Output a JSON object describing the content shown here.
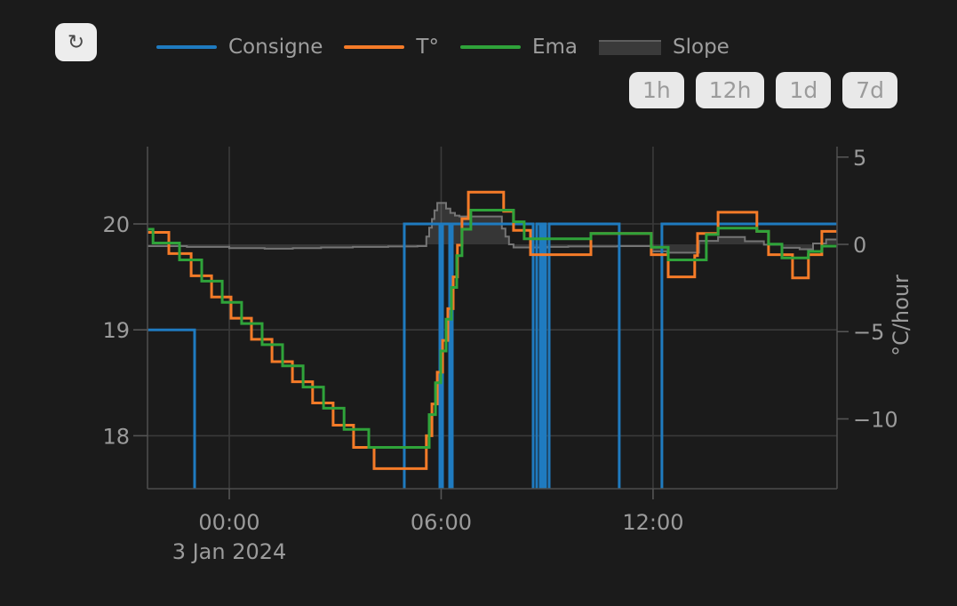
{
  "toolbar": {
    "refresh_icon": "↻"
  },
  "legend": {
    "items": [
      {
        "label": "Consigne",
        "color": "#1f7bc0",
        "type": "line"
      },
      {
        "label": "T°",
        "color": "#f57b28",
        "type": "line"
      },
      {
        "label": "Ema",
        "color": "#2fa33a",
        "type": "line"
      },
      {
        "label": "Slope",
        "color": "#3a3a3a",
        "type": "area"
      }
    ]
  },
  "range_buttons": [
    "1h",
    "12h",
    "1d",
    "7d"
  ],
  "theme": {
    "background": "#1b1b1b",
    "grid": "#3a3a3a",
    "axis_border": "#4c4c4c",
    "tick": "#555555",
    "text": "#9b9b9b",
    "button_bg": "#e9e9e9",
    "button_text": "#9b9b9b",
    "slope_line": "#757575",
    "slope_fill": "rgba(200,200,200,0.16)"
  },
  "chart_data": {
    "type": "line",
    "title": "",
    "x_axis": {
      "unit": "hours relative to 3 Jan 2024 00:00",
      "range": [
        -2.315,
        17.21
      ],
      "ticks": [
        {
          "t": 0,
          "label": "00:00",
          "sublabel": "3 Jan 2024"
        },
        {
          "t": 6,
          "label": "06:00",
          "sublabel": ""
        },
        {
          "t": 12,
          "label": "12:00",
          "sublabel": ""
        }
      ]
    },
    "y_left": {
      "label": "",
      "range": [
        17.5,
        20.73
      ],
      "ticks": [
        {
          "v": 20,
          "label": "20"
        },
        {
          "v": 19,
          "label": "19"
        },
        {
          "v": 18,
          "label": "18"
        }
      ]
    },
    "y_right": {
      "label": "°C/hour",
      "range": [
        -14,
        5.6
      ],
      "ticks": [
        {
          "v": 5,
          "label": "5"
        },
        {
          "v": 0,
          "label": "0"
        },
        {
          "v": -5,
          "label": "−5"
        },
        {
          "v": -10,
          "label": "−10"
        }
      ]
    },
    "legend_position": "top",
    "grid": true,
    "interpolation": "step-after",
    "series": [
      {
        "name": "Consigne",
        "color": "#1f7bc0",
        "axis": "left",
        "width": 3,
        "points": [
          [
            -2.315,
            19
          ],
          [
            -0.981,
            17
          ],
          [
            4.956,
            20
          ],
          [
            5.962,
            17
          ],
          [
            6.038,
            20
          ],
          [
            6.239,
            17
          ],
          [
            6.314,
            20
          ],
          [
            8.604,
            17
          ],
          [
            8.705,
            20
          ],
          [
            8.805,
            17
          ],
          [
            8.881,
            20
          ],
          [
            8.956,
            17
          ],
          [
            9.057,
            20
          ],
          [
            11.044,
            17
          ],
          [
            12.252,
            20
          ]
        ]
      },
      {
        "name": "T°",
        "color": "#f57b28",
        "axis": "left",
        "width": 3,
        "points": [
          [
            -2.315,
            19.92
          ],
          [
            -1.71,
            19.72
          ],
          [
            -1.08,
            19.51
          ],
          [
            -0.5,
            19.31
          ],
          [
            0.05,
            19.11
          ],
          [
            0.63,
            18.91
          ],
          [
            1.21,
            18.7
          ],
          [
            1.79,
            18.51
          ],
          [
            2.36,
            18.31
          ],
          [
            2.94,
            18.1
          ],
          [
            3.52,
            17.89
          ],
          [
            4.1,
            17.69
          ],
          [
            5.58,
            18
          ],
          [
            5.74,
            18.3
          ],
          [
            5.89,
            18.6
          ],
          [
            6.04,
            18.9
          ],
          [
            6.19,
            19.2
          ],
          [
            6.34,
            19.5
          ],
          [
            6.46,
            19.8
          ],
          [
            6.59,
            20.05
          ],
          [
            6.77,
            20.3
          ],
          [
            7.77,
            20.12
          ],
          [
            8.05,
            19.94
          ],
          [
            8.53,
            19.71
          ],
          [
            10.24,
            19.91
          ],
          [
            11.95,
            19.71
          ],
          [
            12.43,
            19.5
          ],
          [
            13.18,
            19.7
          ],
          [
            13.26,
            19.91
          ],
          [
            13.84,
            20.11
          ],
          [
            14.94,
            19.93
          ],
          [
            15.27,
            19.71
          ],
          [
            15.95,
            19.49
          ],
          [
            16.4,
            19.71
          ],
          [
            16.78,
            19.93
          ]
        ]
      },
      {
        "name": "Ema",
        "color": "#2fa33a",
        "axis": "left",
        "width": 3,
        "points": [
          [
            -2.315,
            19.95
          ],
          [
            -2.16,
            19.82
          ],
          [
            -1.41,
            19.66
          ],
          [
            -0.78,
            19.46
          ],
          [
            -0.2,
            19.26
          ],
          [
            0.35,
            19.06
          ],
          [
            0.93,
            18.86
          ],
          [
            1.51,
            18.66
          ],
          [
            2.09,
            18.46
          ],
          [
            2.67,
            18.26
          ],
          [
            3.25,
            18.06
          ],
          [
            3.95,
            17.89
          ],
          [
            5.66,
            18.2
          ],
          [
            5.84,
            18.5
          ],
          [
            5.99,
            18.8
          ],
          [
            6.14,
            19.1
          ],
          [
            6.29,
            19.4
          ],
          [
            6.44,
            19.7
          ],
          [
            6.59,
            19.95
          ],
          [
            6.84,
            20.13
          ],
          [
            8.05,
            20.02
          ],
          [
            8.35,
            19.86
          ],
          [
            10.24,
            19.91
          ],
          [
            11.95,
            19.78
          ],
          [
            12.43,
            19.66
          ],
          [
            13.51,
            19.9
          ],
          [
            13.84,
            19.96
          ],
          [
            14.94,
            19.93
          ],
          [
            15.27,
            19.81
          ],
          [
            15.65,
            19.68
          ],
          [
            16.4,
            19.74
          ],
          [
            16.78,
            19.79
          ]
        ]
      },
      {
        "name": "Slope",
        "color": "#757575",
        "axis": "right",
        "width": 2,
        "fill": "rgba(200,200,200,0.16)",
        "baseline": 0,
        "points": [
          [
            -2.315,
            -0.1
          ],
          [
            -1.2,
            -0.15
          ],
          [
            0,
            -0.22
          ],
          [
            1,
            -0.25
          ],
          [
            1.8,
            -0.22
          ],
          [
            2.6,
            -0.18
          ],
          [
            3.5,
            -0.15
          ],
          [
            4.5,
            -0.12
          ],
          [
            5.33,
            -0.1
          ],
          [
            5.58,
            0.45
          ],
          [
            5.66,
            0.95
          ],
          [
            5.74,
            1.45
          ],
          [
            5.81,
            1.95
          ],
          [
            5.89,
            2.37
          ],
          [
            6.14,
            2.05
          ],
          [
            6.26,
            1.8
          ],
          [
            6.39,
            1.65
          ],
          [
            6.52,
            1.6
          ],
          [
            7.64,
            1.6
          ],
          [
            7.72,
            0.9
          ],
          [
            7.82,
            0.45
          ],
          [
            7.92,
            0
          ],
          [
            8.05,
            -0.18
          ],
          [
            9,
            -0.15
          ],
          [
            9.6,
            -0.12
          ],
          [
            11,
            -0.1
          ],
          [
            11.95,
            -0.4
          ],
          [
            12.4,
            -0.48
          ],
          [
            13.3,
            0.2
          ],
          [
            13.84,
            0.42
          ],
          [
            14.6,
            0.18
          ],
          [
            15.14,
            -0.02
          ],
          [
            15.65,
            -0.2
          ],
          [
            16.15,
            -0.28
          ],
          [
            16.53,
            0.05
          ],
          [
            16.9,
            0.28
          ]
        ]
      }
    ]
  }
}
